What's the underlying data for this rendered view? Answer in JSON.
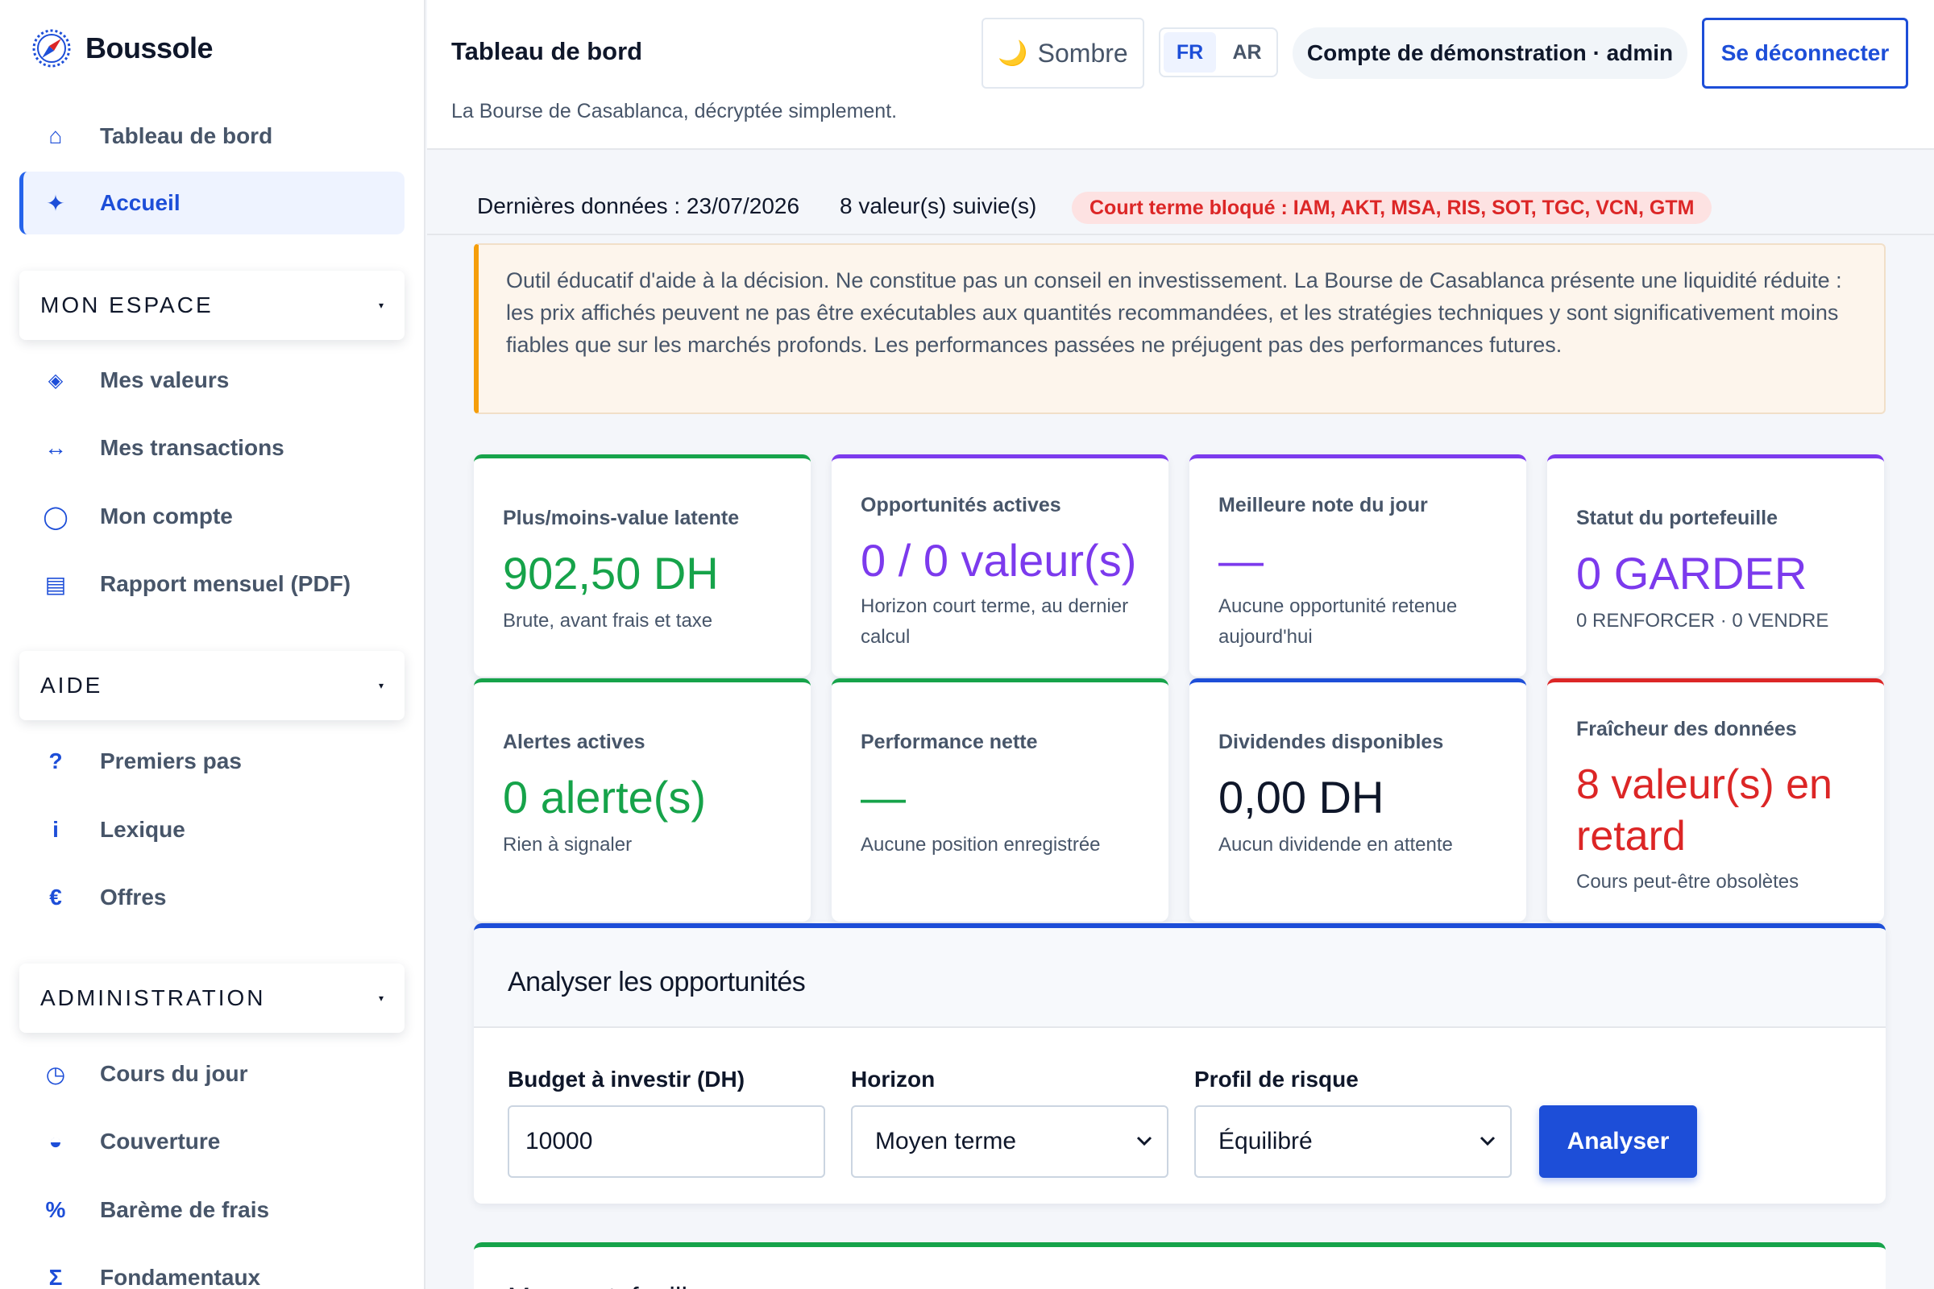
{
  "brand": {
    "name": "Boussole"
  },
  "sidebar": {
    "items": [
      {
        "icon": "⌂",
        "label": "Tableau de bord"
      },
      {
        "icon": "✦",
        "label": "Accueil"
      }
    ],
    "sections": [
      {
        "title": "MON ESPACE",
        "items": [
          {
            "icon": "◈",
            "label": "Mes valeurs"
          },
          {
            "icon": "↔",
            "label": "Mes transactions"
          },
          {
            "icon": "◯",
            "label": "Mon compte"
          },
          {
            "icon": "▤",
            "label": "Rapport mensuel (PDF)"
          }
        ]
      },
      {
        "title": "AIDE",
        "items": [
          {
            "icon": "?",
            "label": "Premiers pas"
          },
          {
            "icon": "i",
            "label": "Lexique"
          },
          {
            "icon": "€",
            "label": "Offres"
          }
        ]
      },
      {
        "title": "ADMINISTRATION",
        "items": [
          {
            "icon": "◷",
            "label": "Cours du jour"
          },
          {
            "icon": "◒",
            "label": "Couverture"
          },
          {
            "icon": "%",
            "label": "Barème de frais"
          },
          {
            "icon": "Σ",
            "label": "Fondamentaux"
          }
        ]
      }
    ],
    "caret": "▾"
  },
  "header": {
    "title": "Tableau de bord",
    "subtitle": "La Bourse de Casablanca, décryptée simplement.",
    "theme_icon": "🌙",
    "theme_label": "Sombre",
    "lang_fr": "FR",
    "lang_ar": "AR",
    "account": "Compte de démonstration · admin",
    "logout": "Se déconnecter"
  },
  "status": {
    "last_data": "Dernières données : 23/07/2026",
    "tracked": "8 valeur(s) suivie(s)",
    "blocked": "Court terme bloqué : IAM, AKT, MSA, RIS, SOT, TGC, VCN, GTM"
  },
  "disclaimer": "Outil éducatif d'aide à la décision. Ne constitue pas un conseil en investissement. La Bourse de Casablanca présente une liquidité réduite : les prix affichés peuvent ne pas être exécutables aux quantités recommandées, et les stratégies techniques y sont significativement moins fiables que sur les marchés profonds. Les performances passées ne préjugent pas des performances futures.",
  "cards": [
    {
      "label": "Plus/moins-value latente",
      "value": "902,50 DH",
      "sub": "Brute, avant frais et taxe",
      "accent": "#16a34a",
      "value_color": "#16a34a"
    },
    {
      "label": "Opportunités actives",
      "value": "0 / 0 valeur(s)",
      "sub": "Horizon court terme, au dernier calcul",
      "accent": "#7c3aed",
      "value_color": "#7c3aed"
    },
    {
      "label": "Meilleure note du jour",
      "value": "—",
      "sub": "Aucune opportunité retenue aujourd'hui",
      "accent": "#7c3aed",
      "value_color": "#7c3aed"
    },
    {
      "label": "Statut du portefeuille",
      "value": "0 GARDER",
      "sub": "0 RENFORCER · 0 VENDRE",
      "accent": "#7c3aed",
      "value_color": "#7c3aed"
    },
    {
      "label": "Alertes actives",
      "value": "0 alerte(s)",
      "sub": "Rien à signaler",
      "accent": "#16a34a",
      "value_color": "#16a34a"
    },
    {
      "label": "Performance nette",
      "value": "—",
      "sub": "Aucune position enregistrée",
      "accent": "#16a34a",
      "value_color": "#16a34a"
    },
    {
      "label": "Dividendes disponibles",
      "value": "0,00 DH",
      "sub": "Aucun dividende en attente",
      "accent": "#1d4ed8",
      "value_color": "#0f172a"
    },
    {
      "label": "Fraîcheur des données",
      "value": "8 valeur(s) en retard",
      "sub": "Cours peut-être obsolètes",
      "accent": "#dc2626",
      "value_color": "#dc2626"
    }
  ],
  "analyze": {
    "title": "Analyser les opportunités",
    "budget_label": "Budget à investir (DH)",
    "budget_value": "10000",
    "horizon_label": "Horizon",
    "horizon_value": "Moyen terme",
    "risk_label": "Profil de risque",
    "risk_value": "Équilibré",
    "button": "Analyser"
  },
  "next_section": {
    "title": "Mon portefeuille"
  },
  "colors": {
    "primary": "#1d4ed8",
    "positive": "#16a34a",
    "accent": "#7c3aed",
    "danger": "#dc2626",
    "warning": "#f59e0b"
  }
}
